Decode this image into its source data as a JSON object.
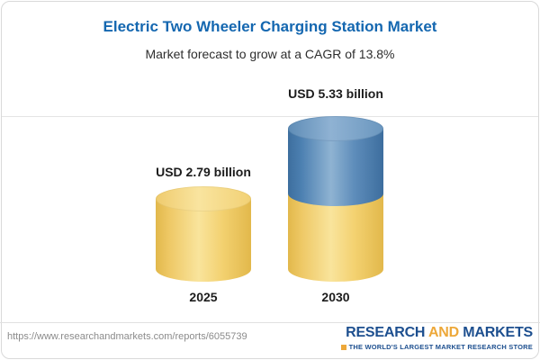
{
  "colors": {
    "title_blue": "#1467b0",
    "subtitle_text": "#2e2e2e",
    "label_text": "#1c1c1c",
    "gridline": "#e4e4e4",
    "card_border": "#d9d9d9",
    "bar_yellow": "#f1cd64",
    "bar_yellow_edge": "#e2b84b",
    "bar_yellow_top": "#f6db8b",
    "bar_blue": "#4a7fb0",
    "bar_blue_edge": "#3d6e9e",
    "bar_blue_top": "#6f9cc3",
    "url_text": "#8b8b8b",
    "logo_blue": "#1d4f8f",
    "logo_gold": "#eda83a"
  },
  "header": {
    "title": "Electric Two Wheeler Charging Station Market",
    "subtitle": "Market forecast to grow at a CAGR of 13.8%"
  },
  "chart_data": {
    "type": "bar",
    "bar_style": "3d-cylinder",
    "title": "Electric Two Wheeler Charging Station Market",
    "subtitle": "Market forecast to grow at a CAGR of 13.8%",
    "cagr_pct": 13.8,
    "categories": [
      "2025",
      "2030"
    ],
    "values": [
      2.79,
      5.33
    ],
    "unit": "USD billion",
    "value_labels": [
      "USD 2.79 billion",
      "USD 5.33 billion"
    ],
    "ylim": [
      0,
      5.33
    ],
    "grid": "single horizontal gridline at top of tallest bar",
    "legend": "none",
    "segment_note": "2030 bar drawn as yellow lower segment (height of 2025 value) with blue upper segment"
  },
  "bars": [
    {
      "category": "2025",
      "value": 2.79,
      "value_label": "USD 2.79 billion"
    },
    {
      "category": "2030",
      "value": 5.33,
      "value_label": "USD 5.33 billion"
    }
  ],
  "footer": {
    "url": "https://www.researchandmarkets.com/reports/6055739",
    "logo": {
      "word1": "RESEARCH",
      "word2": "AND",
      "word3": "MARKETS",
      "tagline": "THE WORLD'S LARGEST MARKET RESEARCH STORE"
    }
  }
}
